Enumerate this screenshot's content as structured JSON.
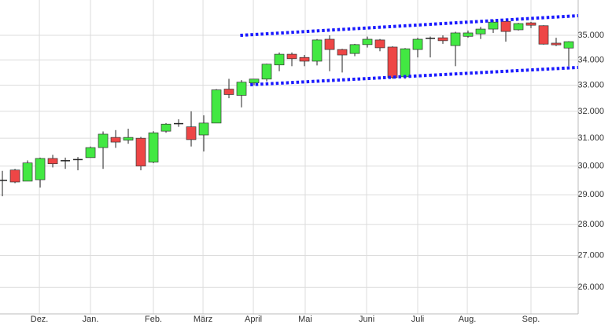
{
  "chart_data": {
    "type": "candlestick",
    "x": [
      0,
      1,
      2,
      3,
      4,
      5,
      6,
      7,
      8,
      9,
      10,
      11,
      12,
      13,
      14,
      15,
      16,
      17,
      18,
      19,
      20,
      21,
      22,
      23,
      24,
      25,
      26,
      27,
      28,
      29,
      30,
      31,
      32,
      33,
      34,
      35,
      36,
      37,
      38,
      39,
      40,
      41,
      42,
      43,
      44,
      45
    ],
    "open": [
      29520,
      29860,
      29470,
      29520,
      30270,
      30180,
      30220,
      30300,
      30660,
      31030,
      30930,
      31000,
      30140,
      31260,
      31530,
      31420,
      31120,
      31560,
      32850,
      32610,
      33090,
      33240,
      33800,
      34230,
      34100,
      33950,
      34840,
      34420,
      34260,
      34620,
      34810,
      34520,
      33330,
      34420,
      34880,
      34900,
      34580,
      34960,
      35060,
      35260,
      35580,
      35230,
      35520,
      35400,
      34680,
      34480
    ],
    "high": [
      29830,
      29900,
      30200,
      30300,
      30400,
      30300,
      30320,
      30700,
      31250,
      31300,
      31350,
      31050,
      31260,
      31560,
      31700,
      32000,
      31850,
      32850,
      33250,
      33200,
      33250,
      33850,
      34300,
      34300,
      34200,
      34850,
      35000,
      34450,
      34650,
      34950,
      34850,
      34550,
      34480,
      34900,
      34950,
      35000,
      35150,
      35200,
      35350,
      35650,
      35600,
      35520,
      35560,
      35420,
      34900,
      34760
    ],
    "low": [
      28950,
      29400,
      29470,
      29250,
      29950,
      29900,
      29850,
      30300,
      29900,
      30650,
      30800,
      29850,
      30100,
      31200,
      31420,
      30700,
      30520,
      31560,
      32500,
      32150,
      33000,
      33150,
      33550,
      33750,
      33750,
      33780,
      33550,
      33500,
      34150,
      34500,
      34350,
      33250,
      33250,
      34100,
      34100,
      34650,
      33750,
      34900,
      34850,
      35100,
      34740,
      35200,
      35300,
      34620,
      34560,
      33750
    ],
    "close": [
      29500,
      29440,
      30110,
      30270,
      30080,
      30210,
      30250,
      30660,
      31150,
      30860,
      31030,
      30000,
      31200,
      31520,
      31560,
      30950,
      31560,
      32820,
      32640,
      33120,
      33240,
      33830,
      34230,
      34050,
      33950,
      34810,
      34420,
      34200,
      34620,
      34840,
      34490,
      33300,
      34450,
      34840,
      34900,
      34780,
      35100,
      35100,
      35260,
      35550,
      35160,
      35490,
      35420,
      34640,
      34610,
      34740
    ],
    "up_color": "#42e842",
    "down_color": "#ee4646",
    "doji_color": "#222222",
    "trendlines": [
      {
        "x": [
          18.9,
          45.75
        ],
        "values": [
          35000,
          35820
        ]
      },
      {
        "x": [
          19.7,
          45.75
        ],
        "values": [
          33020,
          33700
        ]
      }
    ],
    "trendline_color": "#1a1aff",
    "xlim": [
      -0.19,
      45.75
    ],
    "xticks": [
      {
        "value": 2.94,
        "label": "Dez."
      },
      {
        "value": 7,
        "label": "Jan."
      },
      {
        "value": 12,
        "label": "Feb."
      },
      {
        "value": 15.94,
        "label": "März"
      },
      {
        "value": 19.94,
        "label": "April"
      },
      {
        "value": 24.06,
        "label": "Mai"
      },
      {
        "value": 28.94,
        "label": "Juni"
      },
      {
        "value": 33,
        "label": "Juli"
      },
      {
        "value": 36.94,
        "label": "Aug."
      },
      {
        "value": 42,
        "label": "Sep."
      }
    ],
    "ylim": [
      25200,
      36490
    ],
    "log": true,
    "grid": true,
    "yticks": [
      {
        "value": 26000,
        "label": "26.000"
      },
      {
        "value": 27000,
        "label": "27.000"
      },
      {
        "value": 28000,
        "label": "28.000"
      },
      {
        "value": 29000,
        "label": "29.000"
      },
      {
        "value": 30000,
        "label": "30.000"
      },
      {
        "value": 31000,
        "label": "31.000"
      },
      {
        "value": 32000,
        "label": "32.000"
      },
      {
        "value": 33000,
        "label": "33.000"
      },
      {
        "value": 34000,
        "label": "34.000"
      },
      {
        "value": 35000,
        "label": "35.000"
      }
    ]
  }
}
